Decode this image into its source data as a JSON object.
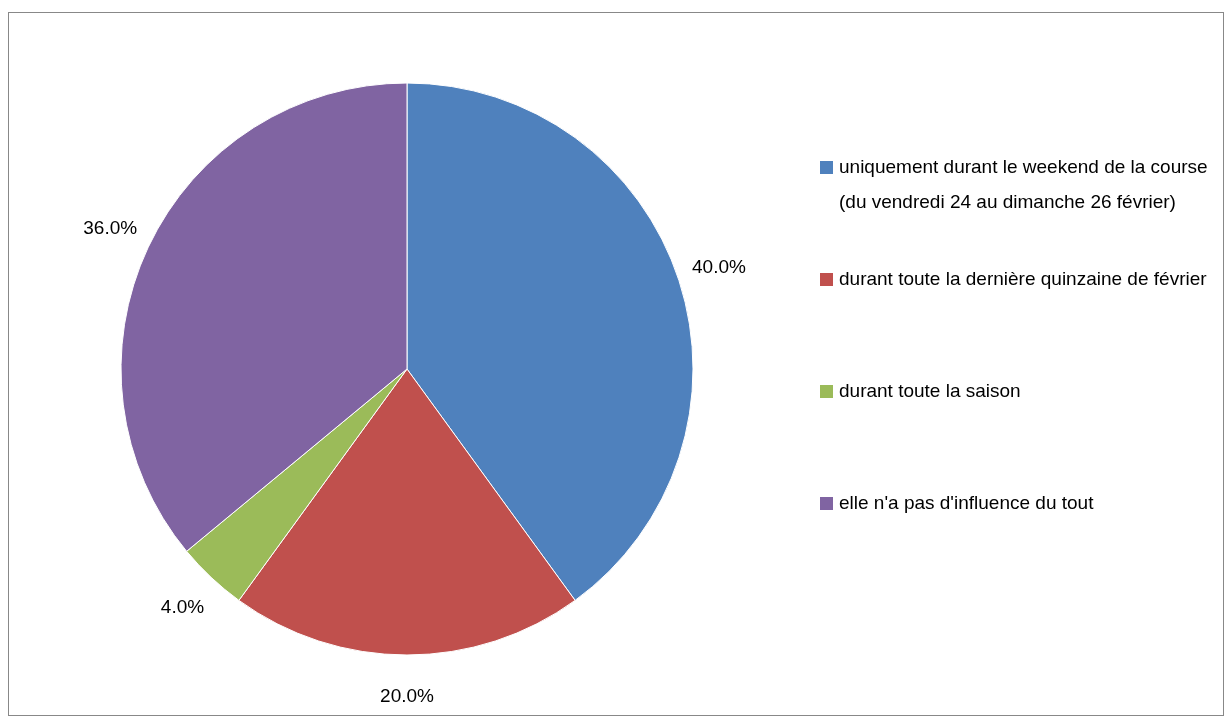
{
  "chart_data": {
    "type": "pie",
    "categories": [
      "uniquement durant le weekend de la course (du vendredi 24 au dimanche 26 février)",
      "durant toute la dernière quinzaine de février",
      "durant toute la saison",
      "elle n'a pas d'influence du tout"
    ],
    "values": [
      40,
      20,
      4,
      36
    ],
    "colors": [
      "#4f81bd",
      "#c0504d",
      "#9bbb59",
      "#8064a2"
    ],
    "value_labels": [
      "40.0%",
      "20.0%",
      "4.0%",
      "36.0%"
    ],
    "legend": "right"
  }
}
